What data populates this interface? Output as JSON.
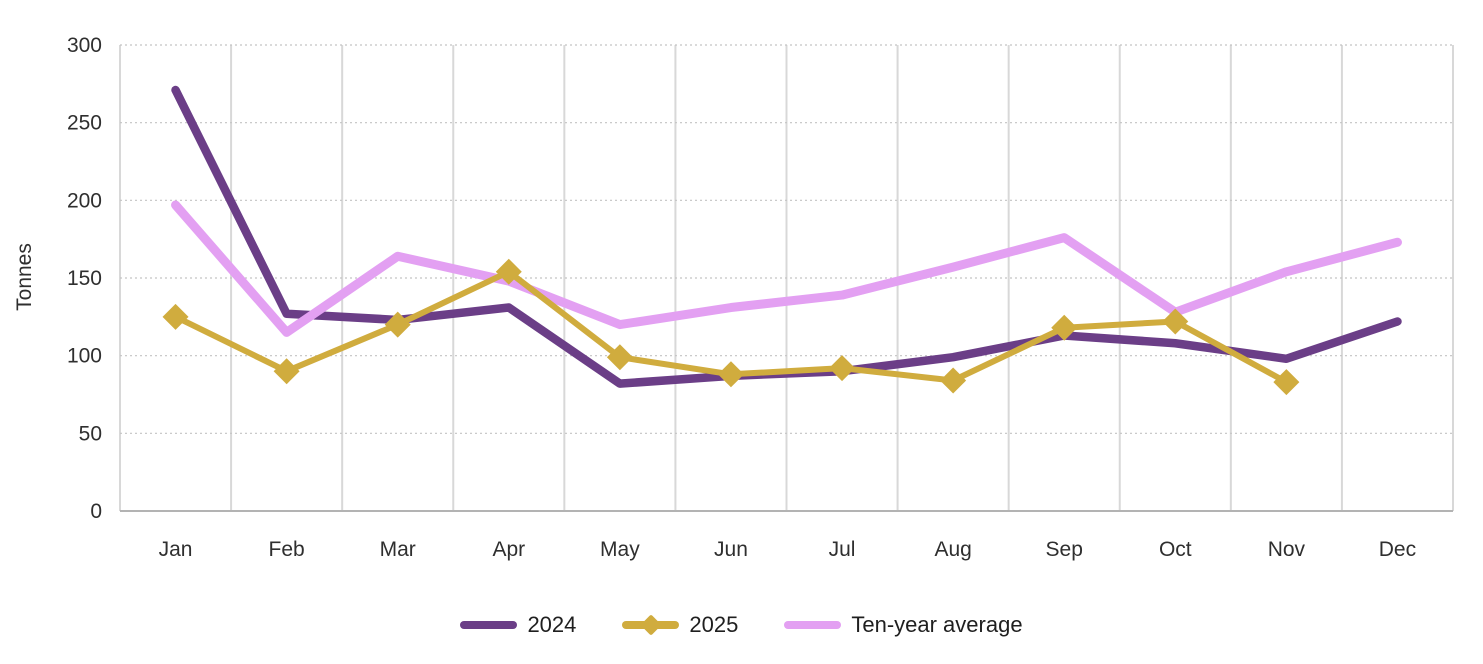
{
  "chart_data": {
    "type": "line",
    "title": "",
    "xlabel": "",
    "ylabel": "Tonnes",
    "ylim": [
      0,
      300
    ],
    "yticks": [
      0,
      50,
      100,
      150,
      200,
      250,
      300
    ],
    "grid": true,
    "legend_position": "bottom",
    "categories": [
      "Jan",
      "Feb",
      "Mar",
      "Apr",
      "May",
      "Jun",
      "Jul",
      "Aug",
      "Sep",
      "Oct",
      "Nov",
      "Dec"
    ],
    "series": [
      {
        "name": "2024",
        "color": "#6b3e87",
        "marker": "none",
        "line_width": 8.5,
        "values": [
          271,
          127,
          123,
          131,
          82,
          87,
          90,
          99,
          113,
          108,
          98,
          122
        ]
      },
      {
        "name": "2025",
        "color": "#d0ac3e",
        "marker": "diamond",
        "line_width": 6,
        "values": [
          125,
          90,
          120,
          154,
          99,
          88,
          92,
          84,
          118,
          122,
          83
        ]
      },
      {
        "name": "Ten-year average",
        "color": "#e3a0f2",
        "marker": "none",
        "line_width": 9,
        "values": [
          197,
          115,
          164,
          148,
          120,
          131,
          139,
          157,
          176,
          128,
          154,
          173
        ]
      }
    ]
  },
  "colors": {
    "background": "#ffffff",
    "vertical_grid": "#d8d8d8",
    "horizontal_grid": "#c3c3c3",
    "axis_line": "#b3b3b3",
    "tick_text": "#2f2f2f"
  }
}
